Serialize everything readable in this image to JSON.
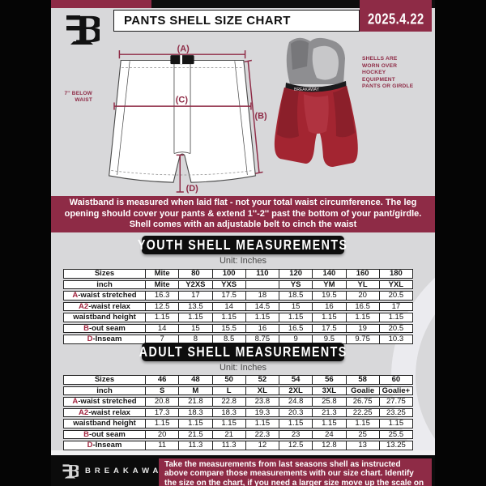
{
  "header": {
    "title": "PANTS SHELL SIZE CHART",
    "date": "2025.4.22"
  },
  "diagram": {
    "label_a": "(A)",
    "label_b": "(B)",
    "label_c": "(C)",
    "label_d": "(D)",
    "waist_note": "7'' BELOW WAIST",
    "photo_caption": "SHELLS ARE WORN OVER HOCKEY EQUIPMENT PANTS OR GIRDLE"
  },
  "info_banner": "Waistband is measured when laid flat - not your total waist circumference. The leg opening should cover your pants & extend 1''-2'' past the bottom of your pant/girdle. Shell comes with an adjustable belt to cinch the waist",
  "youth": {
    "title": "YOUTH SHELL MEASUREMENTS",
    "unit": "Unit: Inches",
    "rows": [
      {
        "prefix": "",
        "label": "Sizes",
        "bold": true,
        "cells": [
          "Mite",
          "80",
          "100",
          "110",
          "120",
          "140",
          "160",
          "180"
        ]
      },
      {
        "prefix": "",
        "label": "inch",
        "bold": true,
        "cells": [
          "Mite",
          "Y2XS",
          "YXS",
          "",
          "YS",
          "YM",
          "YL",
          "YXL"
        ]
      },
      {
        "prefix": "A",
        "label": "-waist stretched",
        "bold": false,
        "cells": [
          "16.3",
          "17",
          "17.5",
          "18",
          "18.5",
          "19.5",
          "20",
          "20.5"
        ]
      },
      {
        "prefix": "A2",
        "label": "-waist relax",
        "bold": false,
        "cells": [
          "12.5",
          "13.5",
          "14",
          "14.5",
          "15",
          "16",
          "16.5",
          "17"
        ]
      },
      {
        "prefix": "",
        "label": "waistband height",
        "bold": false,
        "cells": [
          "1.15",
          "1.15",
          "1.15",
          "1.15",
          "1.15",
          "1.15",
          "1.15",
          "1.15"
        ]
      },
      {
        "prefix": "B",
        "label": "-out seam",
        "bold": false,
        "cells": [
          "14",
          "15",
          "15.5",
          "16",
          "16.5",
          "17.5",
          "19",
          "20.5"
        ]
      },
      {
        "prefix": "D",
        "label": "-Inseam",
        "bold": false,
        "cells": [
          "7",
          "8",
          "8.5",
          "8.75",
          "9",
          "9.5",
          "9.75",
          "10.3"
        ]
      }
    ]
  },
  "adult": {
    "title": "ADULT SHELL MEASUREMENTS",
    "unit": "Unit: Inches",
    "rows": [
      {
        "prefix": "",
        "label": "Sizes",
        "bold": true,
        "cells": [
          "46",
          "48",
          "50",
          "52",
          "54",
          "56",
          "58",
          "60"
        ]
      },
      {
        "prefix": "",
        "label": "inch",
        "bold": true,
        "cells": [
          "S",
          "M",
          "L",
          "XL",
          "2XL",
          "3XL",
          "Goalie",
          "Goalie+"
        ]
      },
      {
        "prefix": "A",
        "label": "-waist stretched",
        "bold": false,
        "cells": [
          "20.8",
          "21.8",
          "22.8",
          "23.8",
          "24.8",
          "25.8",
          "26.75",
          "27.75"
        ]
      },
      {
        "prefix": "A2",
        "label": "-waist relax",
        "bold": false,
        "cells": [
          "17.3",
          "18.3",
          "18.3",
          "19.3",
          "20.3",
          "21.3",
          "22.25",
          "23.25"
        ]
      },
      {
        "prefix": "",
        "label": "waistband height",
        "bold": false,
        "cells": [
          "1.15",
          "1.15",
          "1.15",
          "1.15",
          "1.15",
          "1.15",
          "1.15",
          "1.15"
        ]
      },
      {
        "prefix": "B",
        "label": "-out seam",
        "bold": false,
        "cells": [
          "20",
          "21.5",
          "21",
          "22.3",
          "23",
          "24",
          "25",
          "25.5"
        ]
      },
      {
        "prefix": "D",
        "label": "-Inseam",
        "bold": false,
        "cells": [
          "11",
          "11.3",
          "11.3",
          "12",
          "12.5",
          "12.8",
          "13",
          "13.25"
        ]
      }
    ]
  },
  "footer": {
    "brand": "BREAKAWAY",
    "note": "Take the measurements from last seasons shell as instructed above compare those measurements with our size chart. Identify the size on the chart, if you need a larger size move up the scale on the chart"
  },
  "colors": {
    "maroon": "#8e2b46",
    "accent_red": "#a1253f",
    "background": "#d8d8da",
    "bar_black": "#0b0b0b"
  }
}
